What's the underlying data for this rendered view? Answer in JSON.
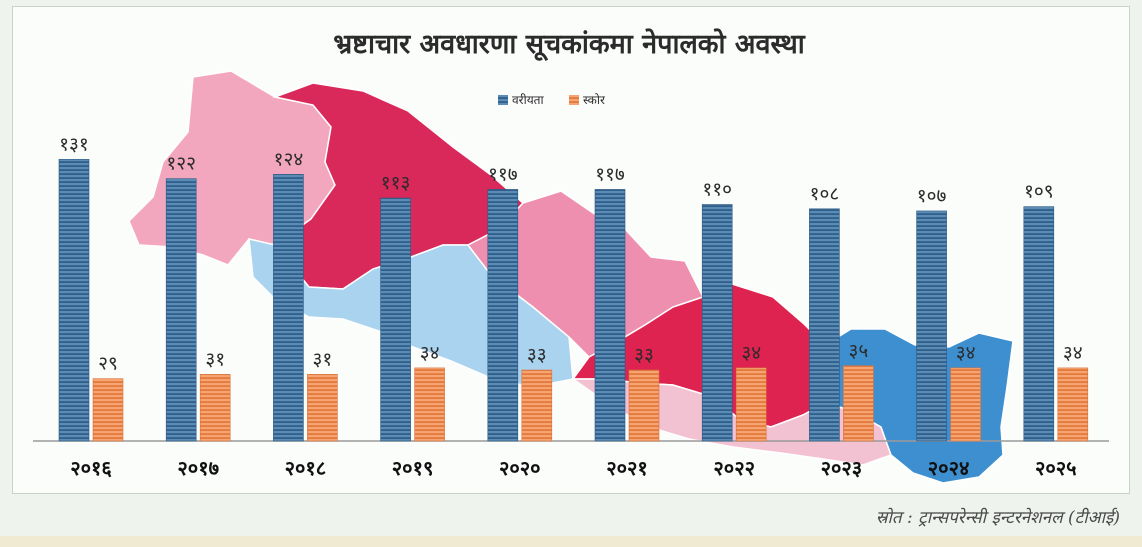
{
  "chart_data": {
    "type": "bar",
    "title": "भ्रष्टाचार अवधारणा सूचकांकमा नेपालको अवस्था",
    "categories": [
      "२०१६",
      "२०१७",
      "२०१८",
      "२०१९",
      "२०२०",
      "२०२१",
      "२०२२",
      "२०२३",
      "२०२४",
      "२०२५"
    ],
    "series": [
      {
        "name": "वरीयता",
        "color": "#4a7ba6",
        "values": [
          131,
          122,
          124,
          113,
          117,
          117,
          110,
          108,
          107,
          109
        ],
        "labels": [
          "१३१",
          "१२२",
          "१२४",
          "११३",
          "११७",
          "११७",
          "११०",
          "१०८",
          "१०७",
          "१०९"
        ]
      },
      {
        "name": "स्कोर",
        "color": "#ef8f5a",
        "values": [
          29,
          31,
          31,
          34,
          33,
          33,
          34,
          35,
          34,
          34
        ],
        "labels": [
          "२९",
          "३१",
          "३१",
          "३४",
          "३३",
          "३३",
          "३४",
          "३५",
          "३४",
          "३४"
        ]
      }
    ],
    "ylim": [
      0,
      140
    ],
    "legend": "top-center",
    "grid": false
  },
  "source": "स्रोत : ट्रान्सपरेन्सी इन्टरनेशनल (टीआई)"
}
